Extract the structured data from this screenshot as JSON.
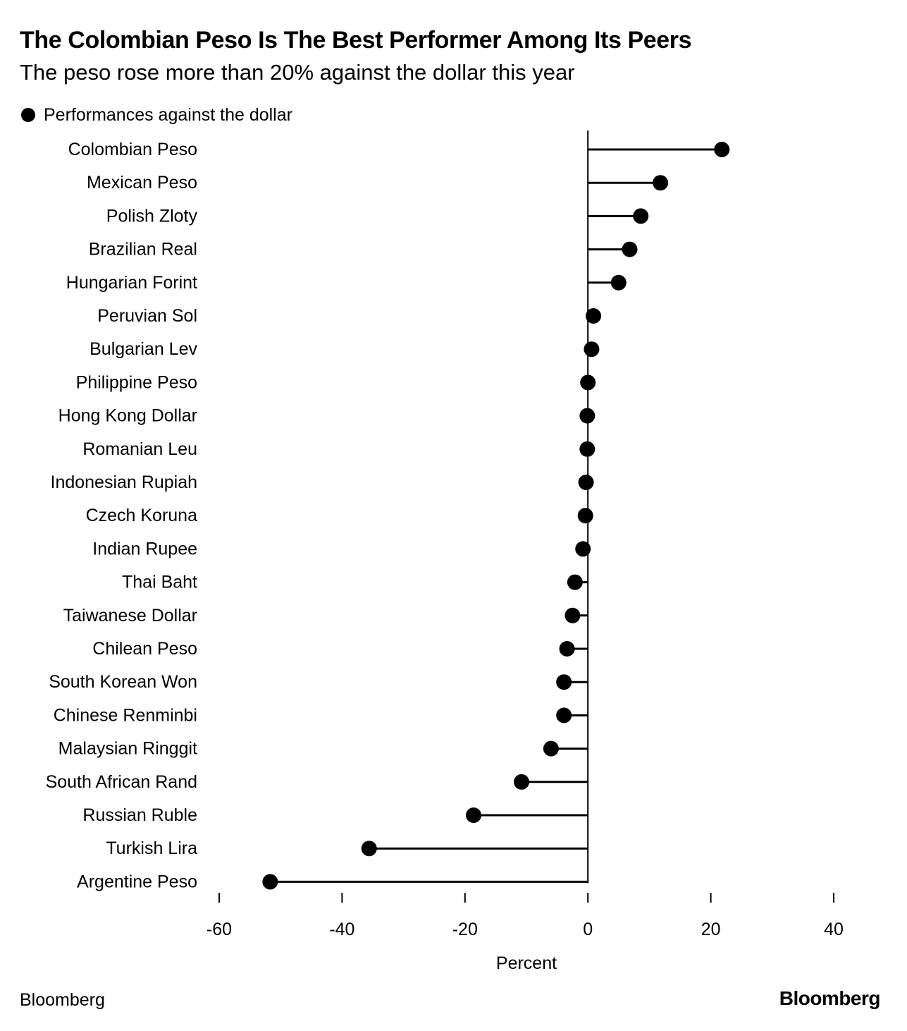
{
  "header": {
    "title": "The Colombian Peso Is The Best Performer Among Its Peers",
    "subtitle": "The peso rose more than 20% against the dollar this year"
  },
  "legend": {
    "label": "Performances against the dollar"
  },
  "footer": {
    "source": "Bloomberg",
    "brand": "Bloomberg"
  },
  "colors": {
    "marker": "#000000",
    "stem": "#000000",
    "axis": "#000000"
  },
  "chart_data": {
    "type": "lollipop",
    "orientation": "horizontal",
    "title": "The Colombian Peso Is The Best Performer Among Its Peers",
    "subtitle": "The peso rose more than 20% against the dollar this year",
    "xlabel": "Percent",
    "ylabel": "",
    "xlim": [
      -60,
      40
    ],
    "xticks": [
      -60,
      -40,
      -20,
      0,
      20,
      40
    ],
    "grid": false,
    "legend_position": "top-left",
    "series": [
      {
        "name": "Performances against the dollar",
        "categories": [
          "Colombian Peso",
          "Mexican Peso",
          "Polish Zloty",
          "Brazilian Real",
          "Hungarian Forint",
          "Peruvian Sol",
          "Bulgarian Lev",
          "Philippine Peso",
          "Hong Kong Dollar",
          "Romanian Leu",
          "Indonesian Rupiah",
          "Czech Koruna",
          "Indian Rupee",
          "Thai Baht",
          "Taiwanese Dollar",
          "Chilean Peso",
          "South Korean Won",
          "Chinese Renminbi",
          "Malaysian Ringgit",
          "South African Rand",
          "Russian Ruble",
          "Turkish Lira",
          "Argentine Peso"
        ],
        "values": [
          21.8,
          11.8,
          8.6,
          6.8,
          5.0,
          0.9,
          0.6,
          0.0,
          -0.1,
          -0.1,
          -0.3,
          -0.4,
          -0.8,
          -2.1,
          -2.5,
          -3.4,
          -3.9,
          -3.9,
          -6.0,
          -10.8,
          -18.6,
          -35.6,
          -51.7
        ]
      }
    ]
  }
}
